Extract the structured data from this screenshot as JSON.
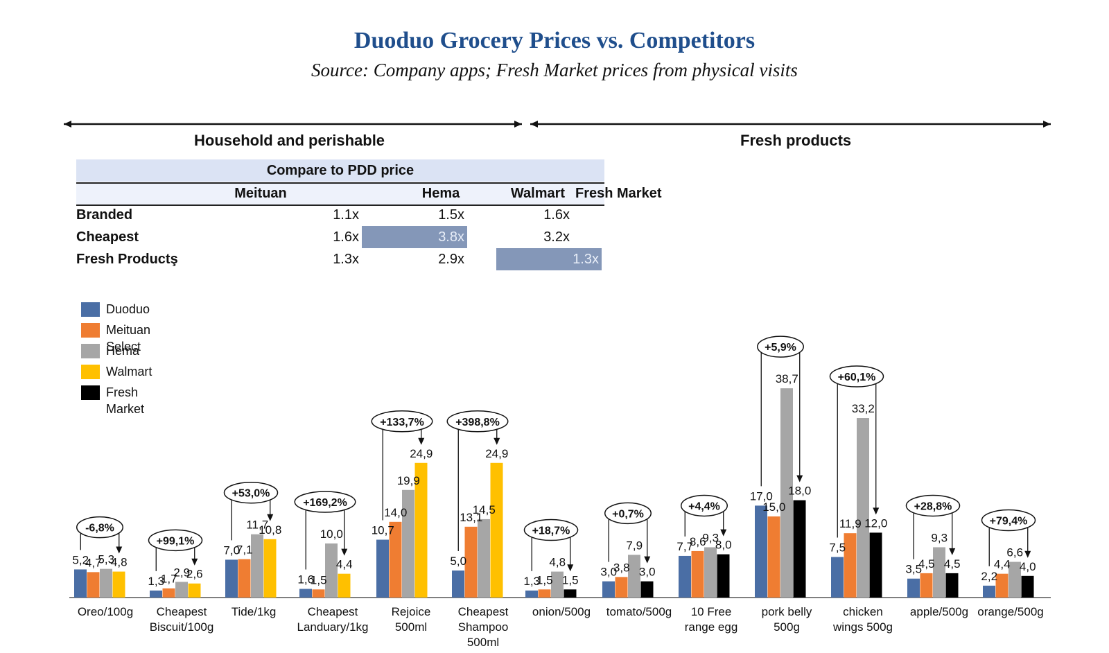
{
  "title": "Duoduo Grocery Prices vs. Competitors",
  "subtitle": "Source: Company apps; Fresh Market prices from physical visits",
  "sections": {
    "left": "Household and perishable",
    "right": "Fresh products"
  },
  "table": {
    "header": "Compare to PDD price",
    "columns": [
      "Meituan",
      "Hema",
      "Walmart",
      "Fresh Market"
    ],
    "rows": [
      {
        "label": "Branded",
        "values": [
          "1.1x",
          "1.5x",
          "1.6x",
          ""
        ]
      },
      {
        "label": "Cheapest",
        "values": [
          "1.6x",
          "3.8x",
          "3.2x",
          ""
        ]
      },
      {
        "label": "Fresh Productş",
        "values": [
          "1.3x",
          "2.9x",
          "",
          "1.3x"
        ]
      }
    ],
    "highlight_color": "#8497b8"
  },
  "colors": {
    "Duoduo": "#4a6ea5",
    "Meituan Select": "#ef7d32",
    "Hema": "#a6a6a6",
    "Walmart": "#ffc000",
    "Fresh Market": "#000000",
    "title": "#1f4e8c"
  },
  "chart_data": {
    "type": "bar",
    "legend": [
      "Duoduo",
      "Meituan Select",
      "Hema",
      "Walmart",
      "Fresh Market"
    ],
    "legend_position": "left",
    "categories": [
      {
        "label": [
          "Oreo/100g"
        ],
        "bars": [
          {
            "series": "Duoduo",
            "value": 5.2,
            "label": "5,2"
          },
          {
            "series": "Meituan Select",
            "value": 4.7,
            "label": "4,7"
          },
          {
            "series": "Hema",
            "value": 5.3,
            "label": "5,3"
          },
          {
            "series": "Walmart",
            "value": 4.8,
            "label": "4,8"
          }
        ],
        "annotation": "-6,8%"
      },
      {
        "label": [
          "Cheapest",
          "Biscuit/100g"
        ],
        "bars": [
          {
            "series": "Duoduo",
            "value": 1.3,
            "label": "1,3"
          },
          {
            "series": "Meituan Select",
            "value": 1.7,
            "label": "1,7"
          },
          {
            "series": "Hema",
            "value": 2.9,
            "label": "2,9"
          },
          {
            "series": "Walmart",
            "value": 2.6,
            "label": "2,6"
          }
        ],
        "annotation": "+99,1%"
      },
      {
        "label": [
          "Tide/1kg"
        ],
        "bars": [
          {
            "series": "Duoduo",
            "value": 7.0,
            "label": "7,0"
          },
          {
            "series": "Meituan Select",
            "value": 7.1,
            "label": "7,1"
          },
          {
            "series": "Hema",
            "value": 11.7,
            "label": "11,7"
          },
          {
            "series": "Walmart",
            "value": 10.8,
            "label": "10,8"
          }
        ],
        "annotation": "+53,0%"
      },
      {
        "label": [
          "Cheapest",
          "Landuary/1kg"
        ],
        "bars": [
          {
            "series": "Duoduo",
            "value": 1.6,
            "label": "1,6"
          },
          {
            "series": "Meituan Select",
            "value": 1.5,
            "label": "1,5"
          },
          {
            "series": "Hema",
            "value": 10.0,
            "label": "10,0"
          },
          {
            "series": "Walmart",
            "value": 4.4,
            "label": "4,4"
          }
        ],
        "annotation": "+169,2%"
      },
      {
        "label": [
          "Rejoice",
          "500ml"
        ],
        "bars": [
          {
            "series": "Duoduo",
            "value": 10.7,
            "label": "10,7"
          },
          {
            "series": "Meituan Select",
            "value": 14.0,
            "label": "14,0"
          },
          {
            "series": "Hema",
            "value": 19.9,
            "label": "19,9"
          },
          {
            "series": "Walmart",
            "value": 24.9,
            "label": "24,9"
          }
        ],
        "annotation": "+133,7%"
      },
      {
        "label": [
          "Cheapest",
          "Shampoo",
          "500ml"
        ],
        "bars": [
          {
            "series": "Duoduo",
            "value": 5.0,
            "label": "5,0"
          },
          {
            "series": "Meituan Select",
            "value": 13.1,
            "label": "13,1"
          },
          {
            "series": "Hema",
            "value": 14.5,
            "label": "14,5"
          },
          {
            "series": "Walmart",
            "value": 24.9,
            "label": "24,9"
          }
        ],
        "annotation": "+398,8%"
      },
      {
        "label": [
          "onion/500g"
        ],
        "bars": [
          {
            "series": "Duoduo",
            "value": 1.3,
            "label": "1,3"
          },
          {
            "series": "Meituan Select",
            "value": 1.5,
            "label": "1,5"
          },
          {
            "series": "Hema",
            "value": 4.8,
            "label": "4,8"
          },
          {
            "series": "Fresh Market",
            "value": 1.5,
            "label": "1,5"
          }
        ],
        "annotation": "+18,7%"
      },
      {
        "label": [
          "tomato/500g"
        ],
        "bars": [
          {
            "series": "Duoduo",
            "value": 3.0,
            "label": "3,0"
          },
          {
            "series": "Meituan Select",
            "value": 3.8,
            "label": "3,8"
          },
          {
            "series": "Hema",
            "value": 7.9,
            "label": "7,9"
          },
          {
            "series": "Fresh Market",
            "value": 3.0,
            "label": "3,0"
          }
        ],
        "annotation": "+0,7%"
      },
      {
        "label": [
          "10 Free",
          "range egg"
        ],
        "bars": [
          {
            "series": "Duoduo",
            "value": 7.7,
            "label": "7,7"
          },
          {
            "series": "Meituan Select",
            "value": 8.6,
            "label": "8,6"
          },
          {
            "series": "Hema",
            "value": 9.3,
            "label": "9,3"
          },
          {
            "series": "Fresh Market",
            "value": 8.0,
            "label": "8,0"
          }
        ],
        "annotation": "+4,4%"
      },
      {
        "label": [
          "pork belly",
          "500g"
        ],
        "bars": [
          {
            "series": "Duoduo",
            "value": 17.0,
            "label": "17,0"
          },
          {
            "series": "Meituan Select",
            "value": 15.0,
            "label": "15,0"
          },
          {
            "series": "Hema",
            "value": 38.7,
            "label": "38,7"
          },
          {
            "series": "Fresh Market",
            "value": 18.0,
            "label": "18,0"
          }
        ],
        "annotation": "+5,9%"
      },
      {
        "label": [
          "chicken",
          "wings 500g"
        ],
        "bars": [
          {
            "series": "Duoduo",
            "value": 7.5,
            "label": "7,5"
          },
          {
            "series": "Meituan Select",
            "value": 11.9,
            "label": "11,9"
          },
          {
            "series": "Hema",
            "value": 33.2,
            "label": "33,2"
          },
          {
            "series": "Fresh Market",
            "value": 12.0,
            "label": "12,0"
          }
        ],
        "annotation": "+60,1%"
      },
      {
        "label": [
          "apple/500g"
        ],
        "bars": [
          {
            "series": "Duoduo",
            "value": 3.5,
            "label": "3,5"
          },
          {
            "series": "Meituan Select",
            "value": 4.5,
            "label": "4,5"
          },
          {
            "series": "Hema",
            "value": 9.3,
            "label": "9,3"
          },
          {
            "series": "Fresh Market",
            "value": 4.5,
            "label": "4,5"
          }
        ],
        "annotation": "+28,8%"
      },
      {
        "label": [
          "orange/500g"
        ],
        "bars": [
          {
            "series": "Duoduo",
            "value": 2.2,
            "label": "2,2"
          },
          {
            "series": "Meituan Select",
            "value": 4.4,
            "label": "4,4"
          },
          {
            "series": "Hema",
            "value": 6.6,
            "label": "6,6"
          },
          {
            "series": "Fresh Market",
            "value": 4.0,
            "label": "4,0"
          }
        ],
        "annotation": "+79,4%"
      }
    ]
  }
}
